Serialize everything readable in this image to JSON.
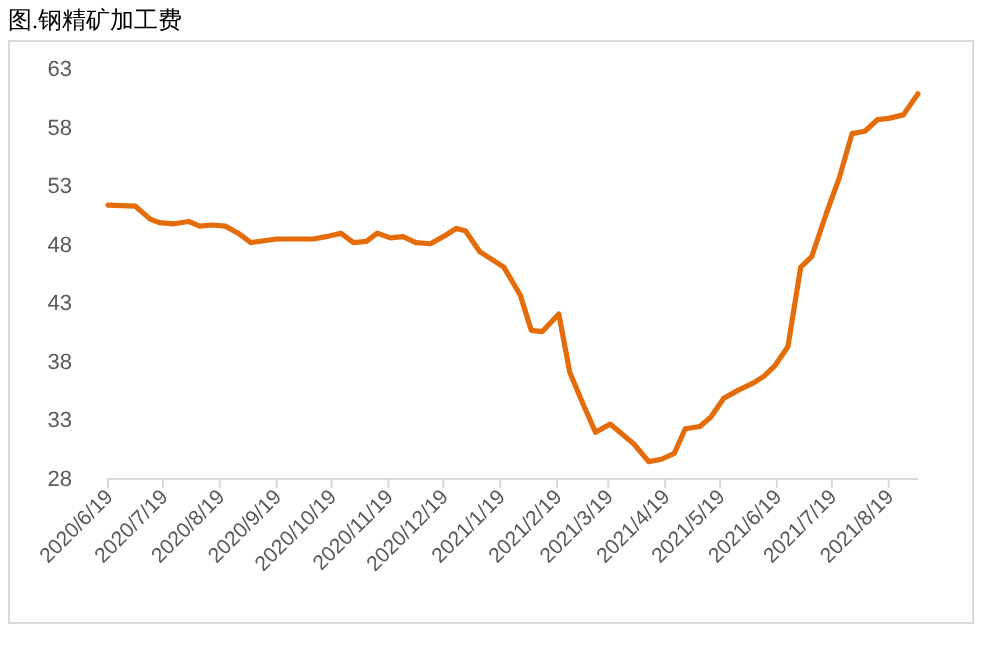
{
  "chart_data": {
    "type": "line",
    "title": "图.钢精矿加工费",
    "x": [
      "2020-06-19",
      "2020-07-04",
      "2020-07-12",
      "2020-07-17",
      "2020-07-25",
      "2020-08-02",
      "2020-08-08",
      "2020-08-15",
      "2020-08-22",
      "2020-08-29",
      "2020-09-05",
      "2020-09-19",
      "2020-10-09",
      "2020-10-16",
      "2020-10-24",
      "2020-10-31",
      "2020-11-07",
      "2020-11-13",
      "2020-11-20",
      "2020-11-27",
      "2020-12-04",
      "2020-12-12",
      "2020-12-20",
      "2020-12-26",
      "2020-12-31",
      "2021-01-08",
      "2021-01-21",
      "2021-01-30",
      "2021-02-05",
      "2021-02-11",
      "2021-02-20",
      "2021-02-26",
      "2021-03-05",
      "2021-03-12",
      "2021-03-20",
      "2021-04-02",
      "2021-04-10",
      "2021-04-17",
      "2021-04-24",
      "2021-04-30",
      "2021-05-08",
      "2021-05-14",
      "2021-05-21",
      "2021-05-29",
      "2021-06-06",
      "2021-06-12",
      "2021-06-18",
      "2021-06-25",
      "2021-07-02",
      "2021-07-08",
      "2021-07-16",
      "2021-07-23",
      "2021-07-30",
      "2021-08-06",
      "2021-08-13",
      "2021-08-19",
      "2021-08-27",
      "2021-09-04"
    ],
    "series": [
      {
        "color": "#e46c0a",
        "values": [
          51.3,
          51.2,
          50.1,
          49.8,
          49.7,
          49.9,
          49.5,
          49.6,
          49.5,
          48.9,
          48.1,
          48.4,
          48.4,
          48.6,
          48.9,
          48.1,
          48.2,
          48.9,
          48.5,
          48.6,
          48.1,
          48.0,
          48.7,
          49.3,
          49.1,
          47.3,
          46.0,
          43.6,
          40.6,
          40.5,
          42.0,
          37.0,
          34.4,
          31.9,
          32.6,
          30.9,
          29.4,
          29.6,
          30.1,
          32.2,
          32.4,
          33.2,
          34.8,
          35.5,
          36.1,
          36.7,
          37.6,
          39.2,
          46.0,
          46.9,
          50.6,
          53.6,
          57.4,
          57.6,
          58.6,
          58.7,
          59.0,
          60.8
        ]
      }
    ],
    "xlim": [
      "2020-06-19",
      "2021-09-04"
    ],
    "xticks": [
      {
        "value": "2020-06-19",
        "label": "2020/6/19"
      },
      {
        "value": "2020-07-19",
        "label": "2020/7/19"
      },
      {
        "value": "2020-08-19",
        "label": "2020/8/19"
      },
      {
        "value": "2020-09-19",
        "label": "2020/9/19"
      },
      {
        "value": "2020-10-19",
        "label": "2020/10/19"
      },
      {
        "value": "2020-11-19",
        "label": "2020/11/19"
      },
      {
        "value": "2020-12-19",
        "label": "2020/12/19"
      },
      {
        "value": "2021-01-19",
        "label": "2021/1/19"
      },
      {
        "value": "2021-02-19",
        "label": "2021/2/19"
      },
      {
        "value": "2021-03-19",
        "label": "2021/3/19"
      },
      {
        "value": "2021-04-19",
        "label": "2021/4/19"
      },
      {
        "value": "2021-05-19",
        "label": "2021/5/19"
      },
      {
        "value": "2021-06-19",
        "label": "2021/6/19"
      },
      {
        "value": "2021-07-19",
        "label": "2021/7/19"
      },
      {
        "value": "2021-08-19",
        "label": "2021/8/19"
      }
    ],
    "ylim": [
      28,
      63
    ],
    "yticks": [
      28,
      33,
      38,
      43,
      48,
      53,
      58,
      63
    ],
    "grid": false,
    "marker": "none",
    "line_style": "solid"
  }
}
